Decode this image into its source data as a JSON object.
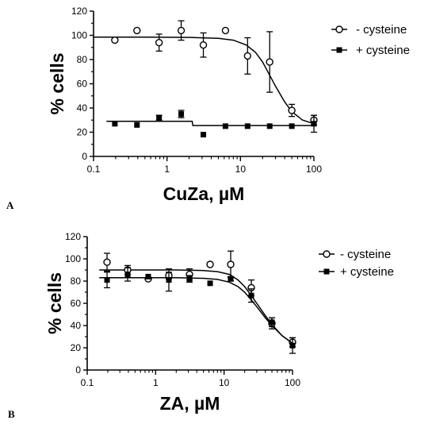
{
  "chart_data": [
    {
      "panel_label": "A",
      "type": "scatter",
      "xscale": "log",
      "xlim": [
        0.1,
        100
      ],
      "ylim": [
        0,
        120
      ],
      "xlabel": "CuZa, µM",
      "ylabel": "% cells",
      "xticks": [
        0.1,
        1,
        10,
        100
      ],
      "xtick_labels": [
        "0.1",
        "1",
        "10",
        "100"
      ],
      "yticks": [
        0,
        20,
        40,
        60,
        80,
        100,
        120
      ],
      "ytick_labels": [
        "0",
        "20",
        "40",
        "60",
        "80",
        "100",
        "120"
      ],
      "legend_position": "top-right",
      "series": [
        {
          "name": "- cysteine",
          "marker": "open-circle",
          "x": [
            0.195,
            0.39,
            0.78,
            1.56,
            3.125,
            6.25,
            12.5,
            25,
            50,
            100
          ],
          "y": [
            96,
            104,
            94,
            104,
            92,
            104,
            83,
            78,
            38,
            30
          ],
          "err": [
            0,
            0,
            7,
            8,
            10,
            0,
            15,
            25,
            5,
            4
          ],
          "fit": [
            [
              0.1,
              98.5
            ],
            [
              0.5,
              98.5
            ],
            [
              2,
              98.3
            ],
            [
              5,
              97.5
            ],
            [
              8,
              96
            ],
            [
              12,
              92
            ],
            [
              16,
              86
            ],
            [
              20,
              78
            ],
            [
              25,
              67
            ],
            [
              30,
              58
            ],
            [
              40,
              45
            ],
            [
              50,
              37
            ],
            [
              70,
              30
            ],
            [
              100,
              27
            ]
          ]
        },
        {
          "name": "+ cysteine",
          "marker": "filled-square",
          "x": [
            0.195,
            0.39,
            0.78,
            1.56,
            3.125,
            6.25,
            12.5,
            25,
            50,
            100
          ],
          "y": [
            27,
            26,
            32,
            35,
            18,
            25,
            25,
            25,
            25,
            27
          ],
          "err": [
            0,
            0,
            2,
            3,
            0,
            0,
            0,
            0,
            0,
            7
          ],
          "fit": [
            [
              0.15,
              29
            ],
            [
              2.2,
              29
            ],
            [
              2.25,
              25.5
            ],
            [
              100,
              25.5
            ]
          ]
        }
      ]
    },
    {
      "panel_label": "B",
      "type": "scatter",
      "xscale": "log",
      "xlim": [
        0.1,
        100
      ],
      "ylim": [
        0,
        120
      ],
      "xlabel": "ZA, µM",
      "ylabel": "% cells",
      "xticks": [
        0.1,
        1,
        10,
        100
      ],
      "xtick_labels": [
        "0.1",
        "1",
        "10",
        "100"
      ],
      "yticks": [
        0,
        20,
        40,
        60,
        80,
        100,
        120
      ],
      "ytick_labels": [
        "0",
        "20",
        "40",
        "60",
        "80",
        "100",
        "120"
      ],
      "legend_position": "top-right",
      "series": [
        {
          "name": "- cysteine",
          "marker": "open-circle",
          "x": [
            0.195,
            0.39,
            0.78,
            1.56,
            3.125,
            6.25,
            12.5,
            25,
            50,
            100
          ],
          "y": [
            97,
            90,
            82,
            85,
            86,
            95,
            95,
            74,
            42,
            25
          ],
          "err": [
            8,
            4,
            0,
            3,
            5,
            0,
            12,
            7,
            5,
            4
          ],
          "fit": [
            [
              0.15,
              90
            ],
            [
              2,
              90
            ],
            [
              5,
              89.5
            ],
            [
              8,
              88.5
            ],
            [
              12,
              86
            ],
            [
              16,
              81
            ],
            [
              20,
              75
            ],
            [
              25,
              67
            ],
            [
              30,
              60
            ],
            [
              40,
              49
            ],
            [
              50,
              41
            ],
            [
              70,
              31
            ],
            [
              100,
              24
            ]
          ]
        },
        {
          "name": "+ cysteine",
          "marker": "filled-square",
          "x": [
            0.195,
            0.39,
            0.78,
            1.56,
            3.125,
            6.25,
            12.5,
            25,
            50,
            100
          ],
          "y": [
            81,
            86,
            84,
            81,
            82,
            78,
            82,
            67,
            43,
            22
          ],
          "err": [
            7,
            6,
            0,
            10,
            3,
            0,
            2,
            6,
            4,
            7
          ],
          "fit": [
            [
              0.15,
              83
            ],
            [
              2,
              83
            ],
            [
              5,
              82.5
            ],
            [
              8,
              81.5
            ],
            [
              12,
              79
            ],
            [
              16,
              75
            ],
            [
              20,
              70
            ],
            [
              25,
              63
            ],
            [
              30,
              57
            ],
            [
              40,
              47
            ],
            [
              50,
              40
            ],
            [
              70,
              31
            ],
            [
              100,
              24
            ]
          ]
        }
      ]
    }
  ]
}
